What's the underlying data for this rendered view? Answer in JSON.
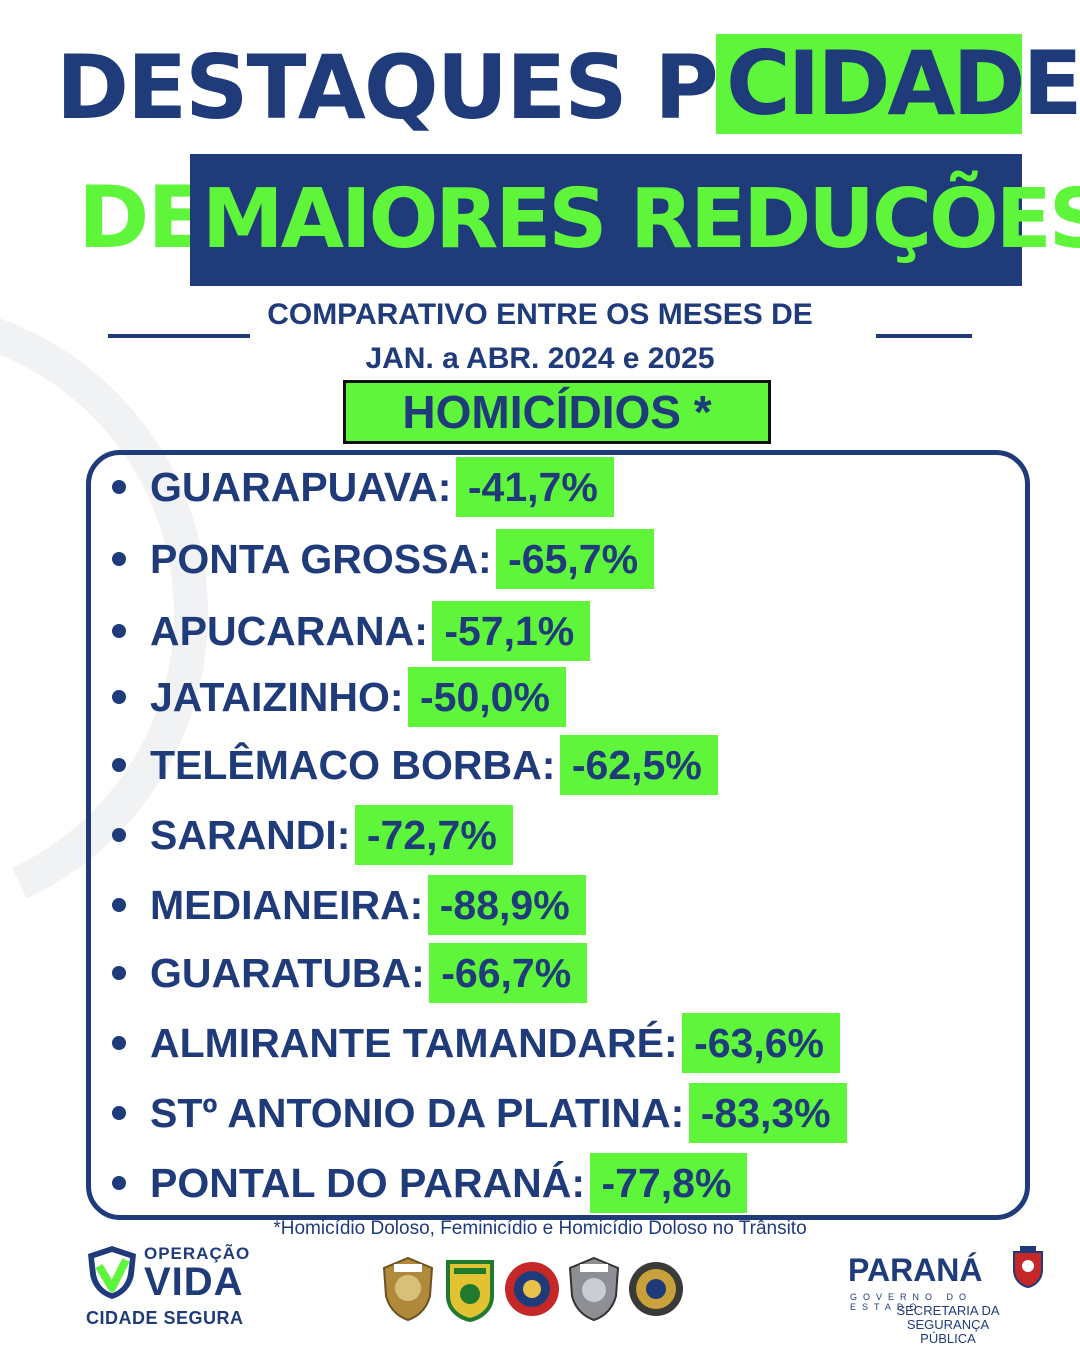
{
  "title": {
    "line1_part1": "DESTAQUES POR",
    "line1_part2": "CIDADE",
    "line2_part1": "DE",
    "line2_part2": "MAIORES REDUÇÕES"
  },
  "subtitle": {
    "line1": "COMPARATIVO ENTRE OS MESES DE",
    "line2": "JAN. a ABR. 2024 e 2025"
  },
  "category": "HOMICÍDIOS *",
  "cities": [
    {
      "name": "GUARAPUAVA:",
      "value": "-41,7%"
    },
    {
      "name": "PONTA GROSSA:",
      "value": "-65,7%"
    },
    {
      "name": "APUCARANA:",
      "value": "-57,1%"
    },
    {
      "name": "JATAIZINHO:",
      "value": "-50,0%"
    },
    {
      "name": "TELÊMACO BORBA:",
      "value": "-62,5%"
    },
    {
      "name": "SARANDI:",
      "value": "-72,7%"
    },
    {
      "name": "MEDIANEIRA:",
      "value": "-88,9%"
    },
    {
      "name": "GUARATUBA:",
      "value": "-66,7%"
    },
    {
      "name": "ALMIRANTE TAMANDARÉ:",
      "value": "-63,6%"
    },
    {
      "name": "STº ANTONIO DA PLATINA:",
      "value": "-83,3%"
    },
    {
      "name": "PONTAL DO PARANÁ:",
      "value": "-77,8%"
    }
  ],
  "footnote": "*Homicídio Doloso, Feminicídio e Homicídio Doloso no Trânsito",
  "logos": {
    "operacao": "OPERAÇÃO",
    "vida": "VIDA",
    "cidade_segura": "CIDADE SEGURA",
    "parana": "PARANÁ",
    "governo": "GOVERNO DO ESTADO",
    "secretaria": "SECRETARIA DA SEGURANÇA PÚBLICA"
  },
  "colors": {
    "navy": "#1f3b7a",
    "green": "#5ef53a"
  }
}
